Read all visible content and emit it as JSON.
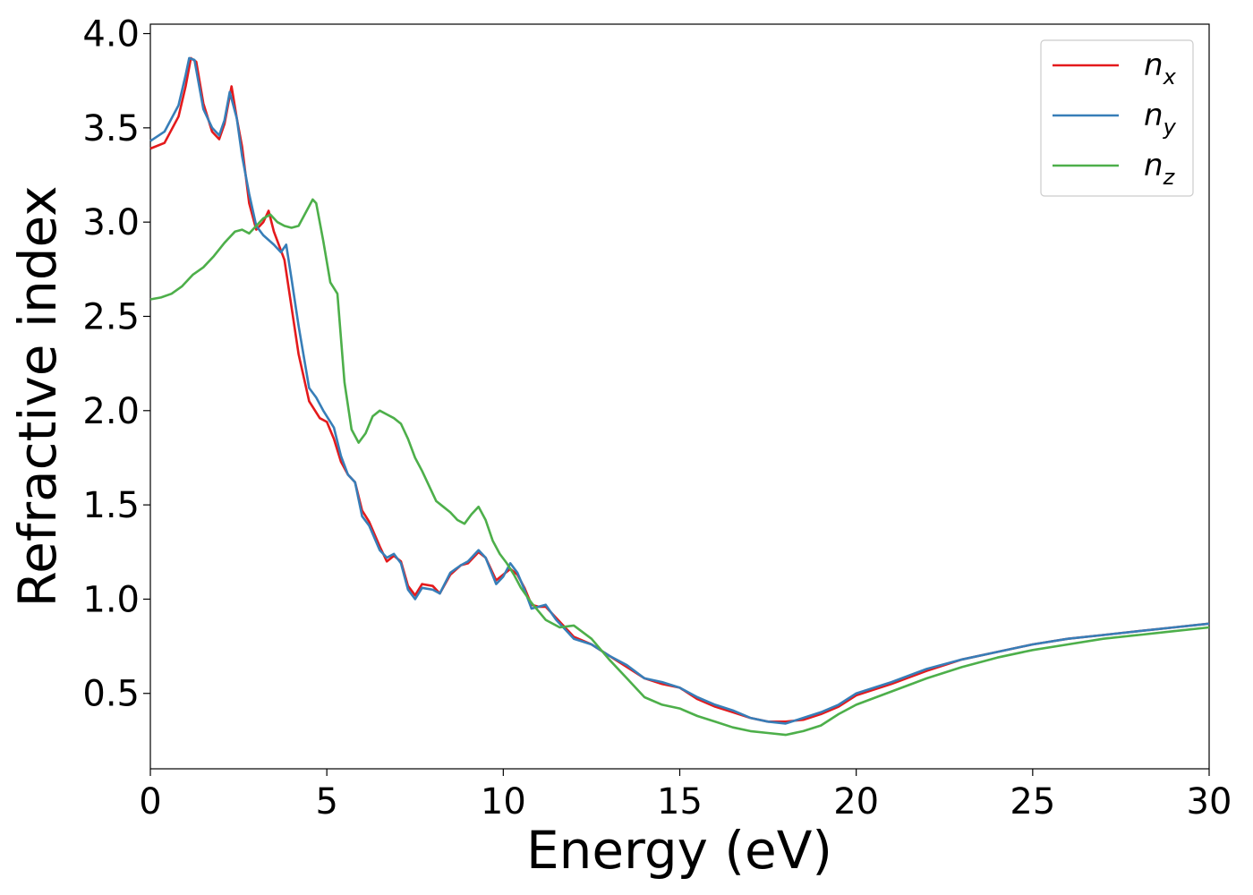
{
  "chart_data": {
    "type": "line",
    "xlabel": "Energy (eV)",
    "ylabel": "Refractive index",
    "xlim": [
      0,
      30
    ],
    "ylim": [
      0.1,
      4.05
    ],
    "xticks": [
      0,
      5,
      10,
      15,
      20,
      25,
      30
    ],
    "xtick_labels": [
      "0",
      "5",
      "10",
      "15",
      "20",
      "25",
      "30"
    ],
    "yticks": [
      0.5,
      1.0,
      1.5,
      2.0,
      2.5,
      3.0,
      3.5,
      4.0
    ],
    "ytick_labels": [
      "0.5",
      "1.0",
      "1.5",
      "2.0",
      "2.5",
      "3.0",
      "3.5",
      "4.0"
    ],
    "grid": false,
    "legend_position": "top-right",
    "series": [
      {
        "name": "n_x",
        "label_base": "n",
        "label_sub": "x",
        "color": "#e41a1c",
        "x": [
          0,
          0.4,
          0.8,
          1.0,
          1.15,
          1.3,
          1.5,
          1.75,
          1.95,
          2.1,
          2.3,
          2.45,
          2.6,
          2.8,
          3.0,
          3.2,
          3.35,
          3.5,
          3.8,
          4.0,
          4.2,
          4.5,
          4.8,
          5.0,
          5.2,
          5.4,
          5.6,
          5.8,
          6.0,
          6.2,
          6.5,
          6.7,
          6.9,
          7.1,
          7.3,
          7.5,
          7.7,
          8.0,
          8.2,
          8.5,
          8.8,
          9.0,
          9.3,
          9.5,
          9.8,
          10.0,
          10.2,
          10.4,
          10.6,
          10.8,
          11.0,
          11.2,
          11.5,
          12.0,
          12.5,
          13.0,
          13.5,
          14.0,
          14.5,
          15.0,
          15.5,
          16.0,
          16.5,
          17.0,
          17.5,
          18.0,
          18.5,
          19.0,
          19.5,
          20.0,
          21.0,
          22.0,
          23.0,
          24.0,
          25.0,
          26.0,
          27.0,
          28.0,
          29.0,
          30.0
        ],
        "y": [
          3.39,
          3.42,
          3.56,
          3.72,
          3.87,
          3.85,
          3.63,
          3.48,
          3.44,
          3.52,
          3.72,
          3.55,
          3.4,
          3.1,
          2.96,
          3.0,
          3.06,
          2.95,
          2.8,
          2.55,
          2.3,
          2.05,
          1.96,
          1.94,
          1.85,
          1.73,
          1.66,
          1.62,
          1.47,
          1.41,
          1.28,
          1.2,
          1.23,
          1.2,
          1.07,
          1.02,
          1.08,
          1.07,
          1.03,
          1.13,
          1.18,
          1.19,
          1.25,
          1.22,
          1.1,
          1.13,
          1.16,
          1.13,
          1.06,
          0.97,
          0.96,
          0.96,
          0.9,
          0.8,
          0.76,
          0.7,
          0.64,
          0.58,
          0.55,
          0.53,
          0.47,
          0.43,
          0.4,
          0.37,
          0.35,
          0.35,
          0.36,
          0.39,
          0.43,
          0.49,
          0.55,
          0.62,
          0.68,
          0.72,
          0.76,
          0.79,
          0.81,
          0.83,
          0.85,
          0.87
        ]
      },
      {
        "name": "n_y",
        "label_base": "n",
        "label_sub": "y",
        "color": "#377eb8",
        "x": [
          0,
          0.4,
          0.8,
          1.0,
          1.1,
          1.25,
          1.5,
          1.75,
          1.95,
          2.1,
          2.25,
          2.45,
          2.6,
          2.8,
          3.0,
          3.2,
          3.5,
          3.7,
          3.85,
          4.0,
          4.2,
          4.5,
          4.7,
          4.9,
          5.2,
          5.4,
          5.6,
          5.8,
          6.0,
          6.2,
          6.5,
          6.7,
          6.9,
          7.1,
          7.3,
          7.5,
          7.7,
          8.0,
          8.2,
          8.5,
          8.8,
          9.0,
          9.3,
          9.5,
          9.8,
          10.0,
          10.2,
          10.4,
          10.6,
          10.8,
          11.0,
          11.2,
          11.5,
          12.0,
          12.5,
          13.0,
          13.5,
          14.0,
          14.5,
          15.0,
          15.5,
          16.0,
          16.5,
          17.0,
          17.5,
          18.0,
          18.5,
          19.0,
          19.5,
          20.0,
          21.0,
          22.0,
          23.0,
          24.0,
          25.0,
          26.0,
          27.0,
          28.0,
          29.0,
          30.0
        ],
        "y": [
          3.43,
          3.48,
          3.62,
          3.78,
          3.87,
          3.86,
          3.6,
          3.5,
          3.46,
          3.54,
          3.69,
          3.55,
          3.35,
          3.15,
          2.98,
          2.93,
          2.88,
          2.84,
          2.88,
          2.7,
          2.45,
          2.12,
          2.07,
          2.0,
          1.91,
          1.76,
          1.66,
          1.62,
          1.44,
          1.39,
          1.26,
          1.22,
          1.24,
          1.19,
          1.05,
          1.0,
          1.06,
          1.05,
          1.03,
          1.14,
          1.18,
          1.2,
          1.26,
          1.22,
          1.08,
          1.12,
          1.19,
          1.14,
          1.05,
          0.95,
          0.96,
          0.97,
          0.89,
          0.79,
          0.76,
          0.7,
          0.65,
          0.58,
          0.56,
          0.53,
          0.48,
          0.44,
          0.41,
          0.37,
          0.35,
          0.34,
          0.37,
          0.4,
          0.44,
          0.5,
          0.56,
          0.63,
          0.68,
          0.72,
          0.76,
          0.79,
          0.81,
          0.83,
          0.85,
          0.87
        ]
      },
      {
        "name": "n_z",
        "label_base": "n",
        "label_sub": "z",
        "color": "#4daf4a",
        "x": [
          0,
          0.3,
          0.6,
          0.9,
          1.2,
          1.5,
          1.8,
          2.1,
          2.4,
          2.6,
          2.8,
          3.0,
          3.2,
          3.4,
          3.6,
          3.8,
          4.0,
          4.2,
          4.4,
          4.6,
          4.7,
          4.9,
          5.1,
          5.3,
          5.5,
          5.7,
          5.9,
          6.1,
          6.3,
          6.5,
          6.7,
          6.9,
          7.1,
          7.3,
          7.5,
          7.7,
          7.9,
          8.1,
          8.3,
          8.5,
          8.7,
          8.9,
          9.1,
          9.3,
          9.5,
          9.7,
          9.9,
          10.1,
          10.3,
          10.5,
          10.8,
          11.2,
          11.6,
          12.0,
          12.5,
          13.0,
          13.5,
          14.0,
          14.5,
          15.0,
          15.5,
          16.0,
          16.5,
          17.0,
          17.5,
          18.0,
          18.5,
          19.0,
          19.5,
          20.0,
          21.0,
          22.0,
          23.0,
          24.0,
          25.0,
          26.0,
          27.0,
          28.0,
          29.0,
          30.0
        ],
        "y": [
          2.59,
          2.6,
          2.62,
          2.66,
          2.72,
          2.76,
          2.82,
          2.89,
          2.95,
          2.96,
          2.94,
          2.98,
          3.02,
          3.04,
          3.0,
          2.98,
          2.97,
          2.98,
          3.05,
          3.12,
          3.1,
          2.9,
          2.68,
          2.62,
          2.15,
          1.9,
          1.83,
          1.88,
          1.97,
          2.0,
          1.98,
          1.96,
          1.93,
          1.85,
          1.75,
          1.68,
          1.6,
          1.52,
          1.49,
          1.46,
          1.42,
          1.4,
          1.45,
          1.49,
          1.42,
          1.31,
          1.24,
          1.19,
          1.13,
          1.06,
          0.98,
          0.89,
          0.85,
          0.86,
          0.79,
          0.68,
          0.58,
          0.48,
          0.44,
          0.42,
          0.38,
          0.35,
          0.32,
          0.3,
          0.29,
          0.28,
          0.3,
          0.33,
          0.39,
          0.44,
          0.51,
          0.58,
          0.64,
          0.69,
          0.73,
          0.76,
          0.79,
          0.81,
          0.83,
          0.85
        ]
      }
    ]
  }
}
